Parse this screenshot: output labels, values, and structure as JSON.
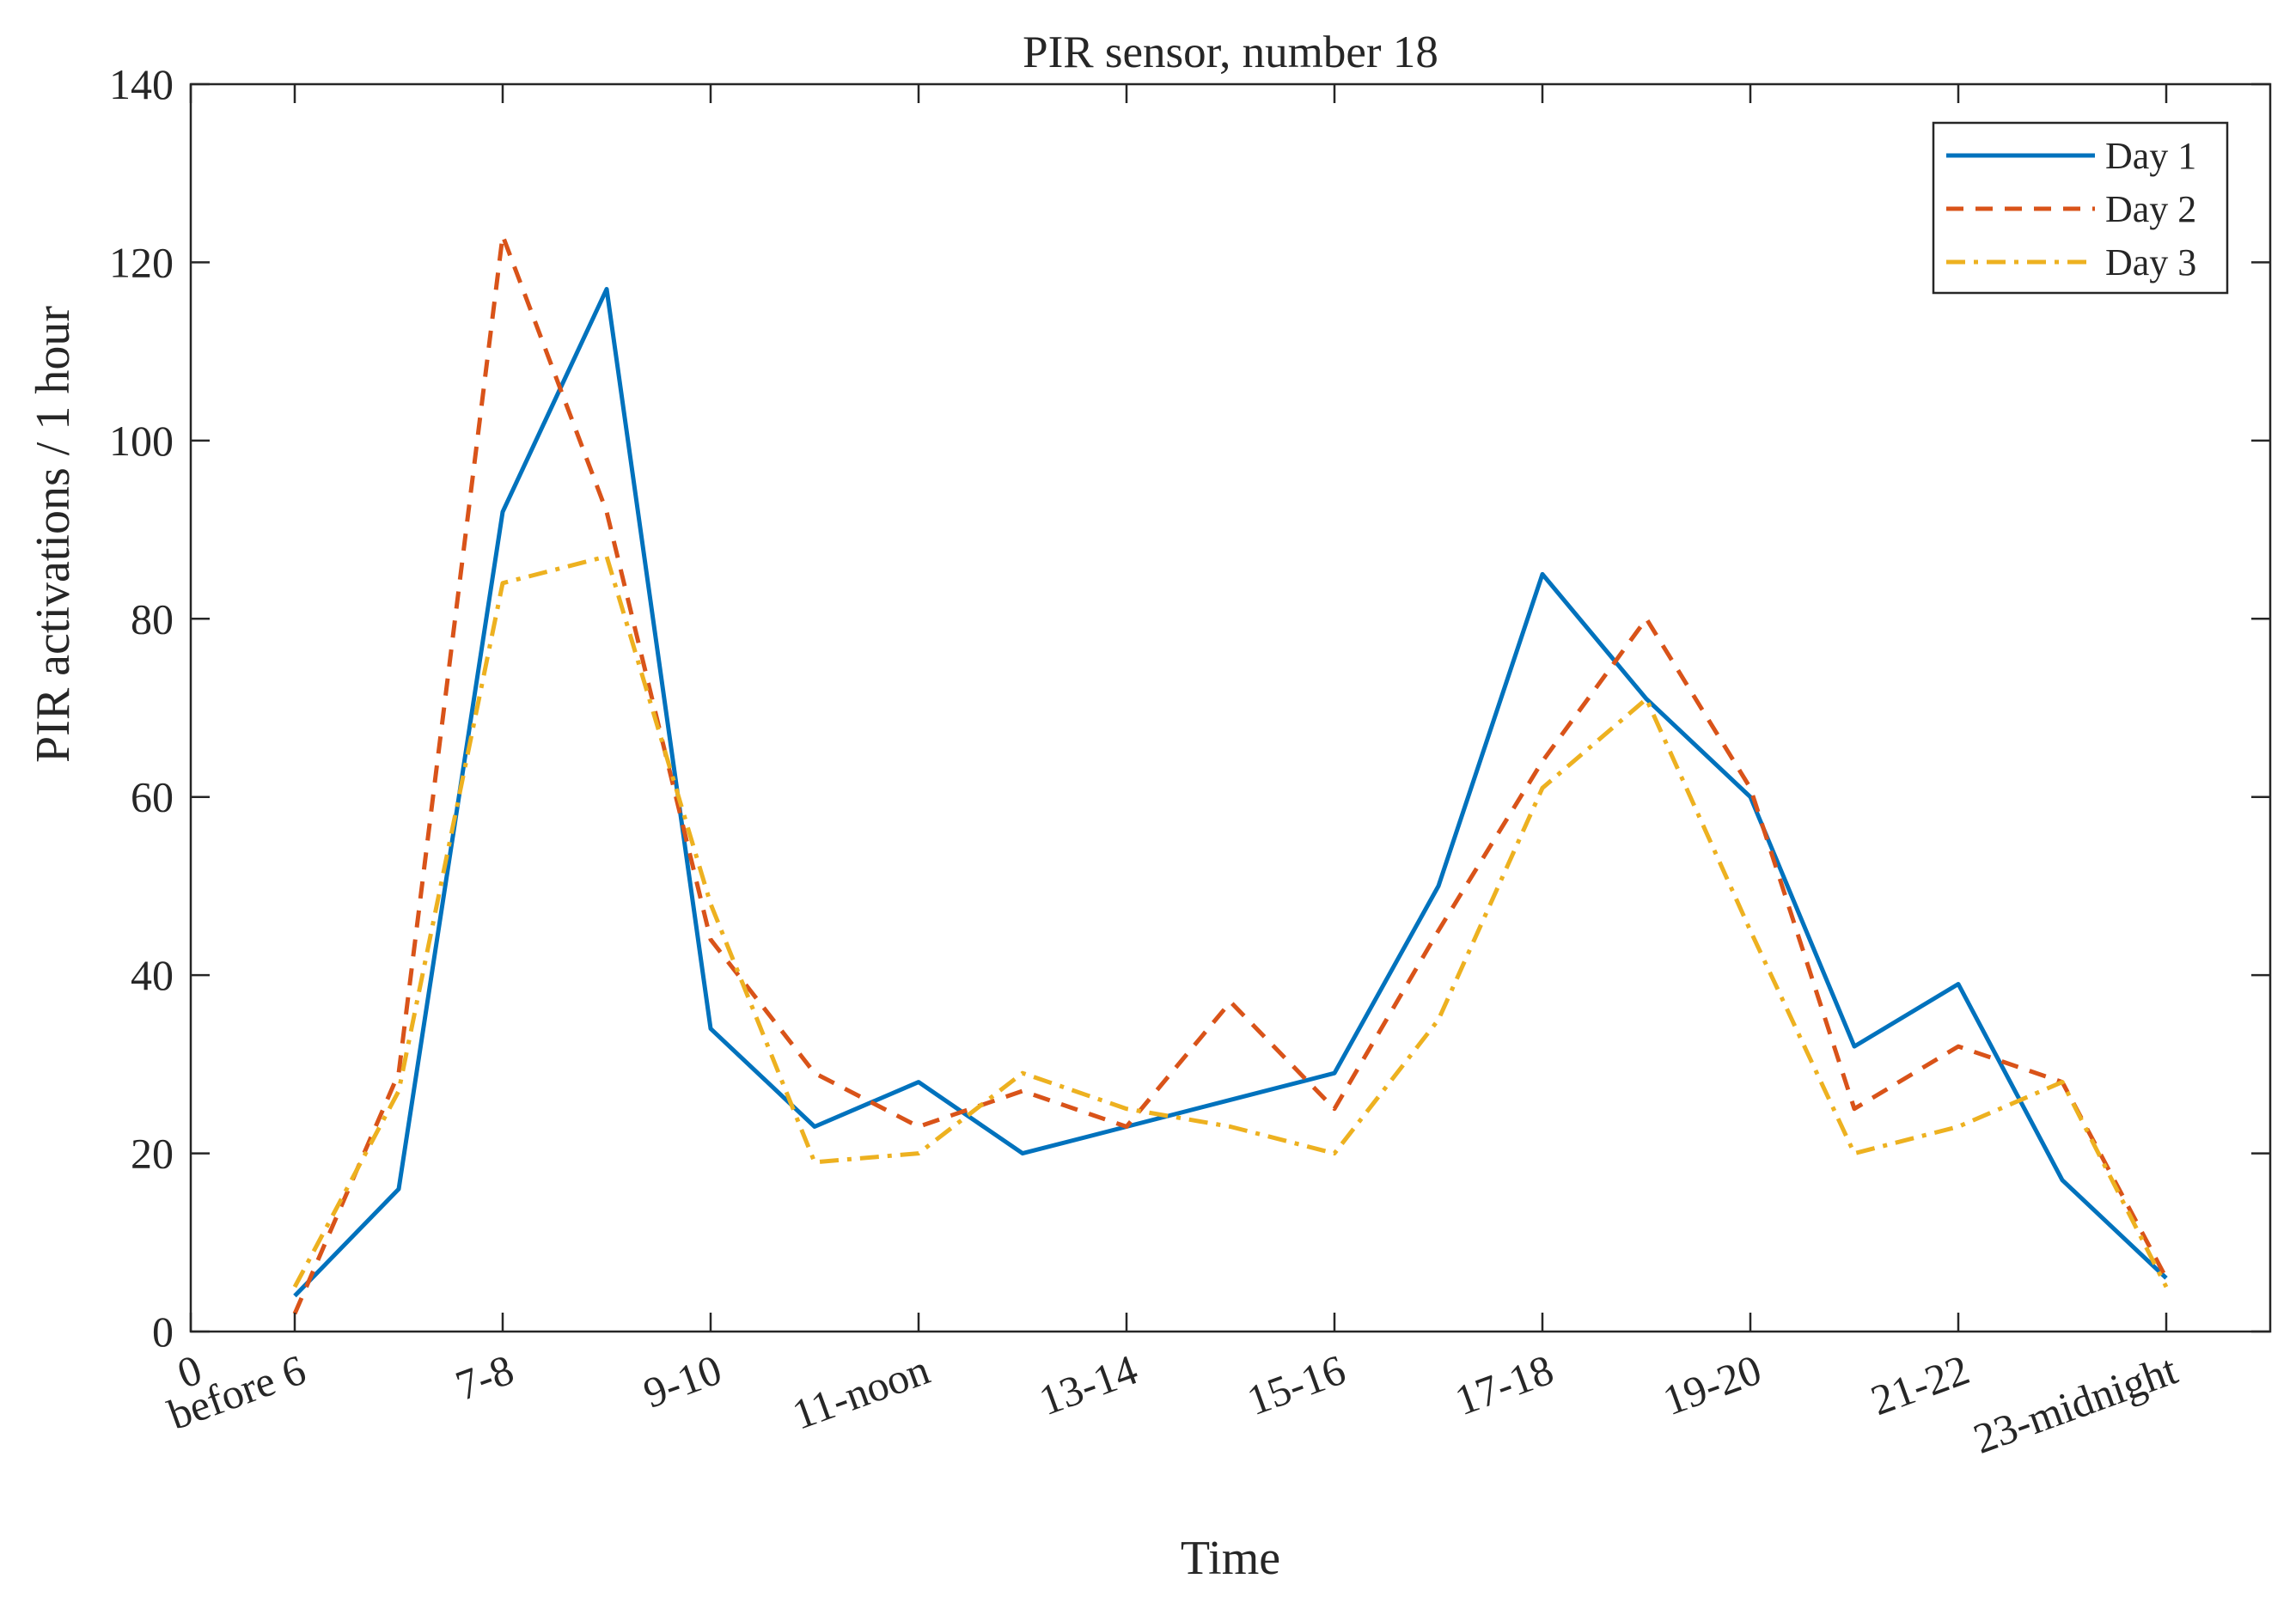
{
  "chart_data": {
    "type": "line",
    "title": "PIR sensor, number 18",
    "xlabel": "Time",
    "ylabel": "PIR activations / 1 hour",
    "x": [
      1,
      2,
      3,
      4,
      5,
      6,
      7,
      8,
      9,
      10,
      11,
      12,
      13,
      14,
      15,
      16,
      17,
      18,
      19
    ],
    "xlim": [
      0,
      20
    ],
    "ylim": [
      0,
      140
    ],
    "yticks": [
      0,
      20,
      40,
      60,
      80,
      100,
      120,
      140
    ],
    "xticks": [
      0,
      1,
      3,
      5,
      7,
      9,
      11,
      13,
      15,
      17,
      19
    ],
    "xticklabels": [
      "0",
      "before 6",
      "7-8",
      "9-10",
      "11-noon",
      "13-14",
      "15-16",
      "17-18",
      "19-20",
      "21-22",
      "23-midnight"
    ],
    "legend_position": "top-right",
    "grid": false,
    "series": [
      {
        "name": "Day 1",
        "color": "#0072BD",
        "dash": "solid",
        "values": [
          4,
          16,
          92,
          117,
          34,
          23,
          28,
          20,
          23,
          26,
          29,
          50,
          85,
          71,
          60,
          32,
          39,
          17,
          6
        ]
      },
      {
        "name": "Day 2",
        "color": "#D95319",
        "dash": "dashed",
        "values": [
          2,
          29,
          123,
          92,
          44,
          29,
          23,
          27,
          23,
          37,
          25,
          45,
          64,
          80,
          61,
          25,
          32,
          28,
          6
        ]
      },
      {
        "name": "Day 3",
        "color": "#EDB120",
        "dash": "dashdot",
        "values": [
          5,
          27,
          84,
          87,
          48,
          19,
          20,
          29,
          25,
          23,
          20,
          35,
          61,
          71,
          45,
          20,
          23,
          28,
          5
        ]
      }
    ]
  }
}
